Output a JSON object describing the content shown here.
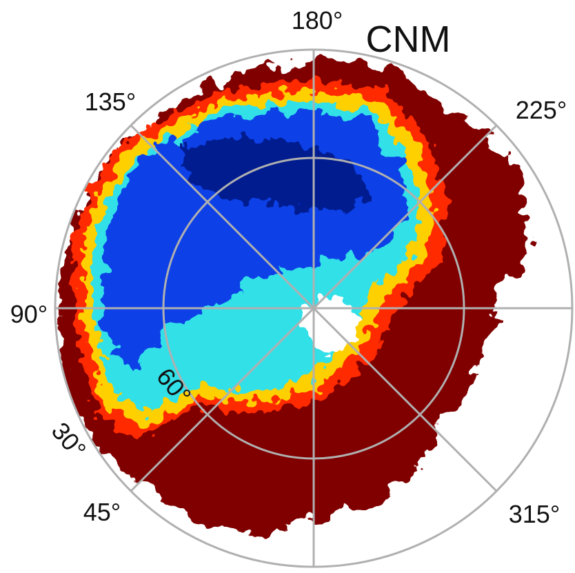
{
  "title": "CNM",
  "longitude_labels": [
    "180°",
    "135°",
    "225°",
    "90°",
    "45°",
    "315°"
  ],
  "latitude_labels": [
    "60°",
    "30°"
  ]
}
